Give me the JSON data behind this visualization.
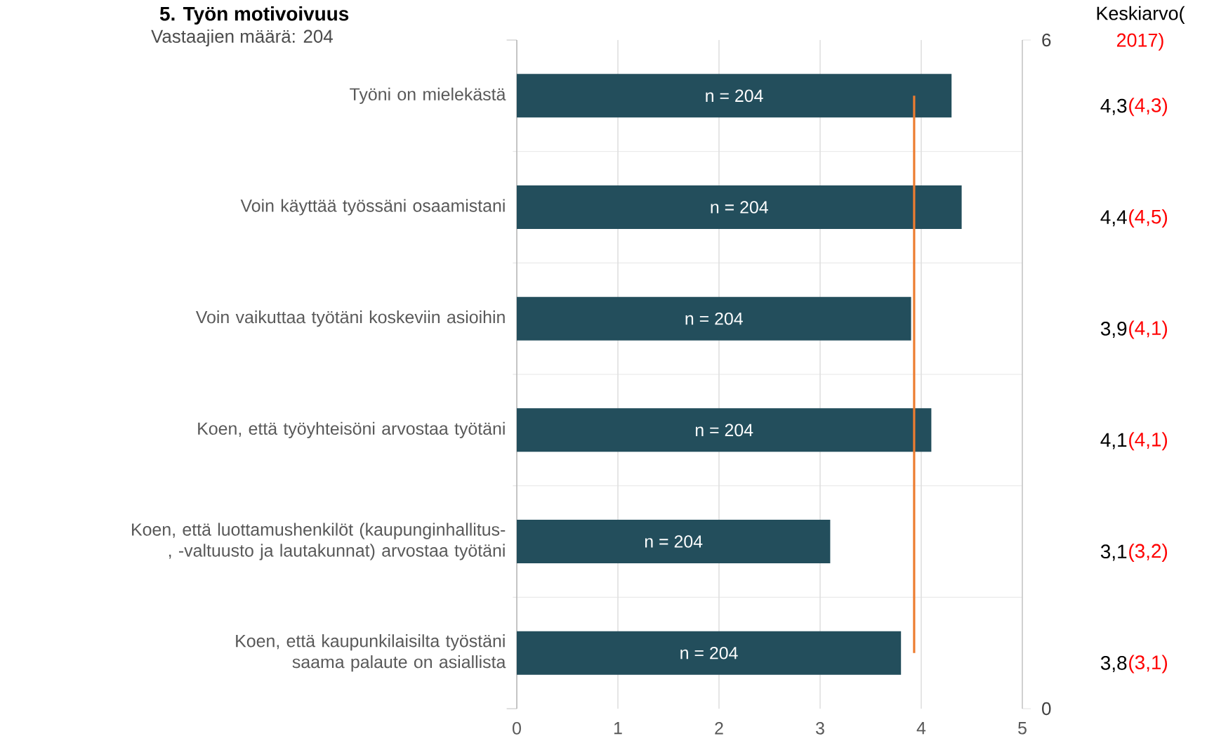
{
  "chart_data": {
    "type": "bar",
    "orientation": "horizontal",
    "title": "5. Työn motivoivuus",
    "subtitle": "Vastaajien määrä: 204",
    "categories": [
      "Työni on mielekästä",
      "Voin käyttää työssäni osaamistani",
      "Voin vaikuttaa työtäni koskeviin asioihin",
      "Koen, että työyhteisöni arvostaa työtäni",
      "Koen, että luottamushenkilöt (kaupunginhallitus-, -valtuusto ja lautakunnat) arvostaa työtäni",
      "Koen, että kaupunkilaisilta työstäni saama palaute on asiallista"
    ],
    "series": [
      {
        "color": "#234e5c",
        "values": [
          4.3,
          4.4,
          3.9,
          4.1,
          3.1,
          3.8
        ]
      }
    ],
    "ref_lines": [
      {
        "axis": "x",
        "value": 3.93,
        "color": "#ed7d31"
      }
    ],
    "xlim": [
      0,
      5
    ],
    "xticks": [
      0,
      1,
      2,
      3,
      4,
      5
    ],
    "y2lim": [
      0,
      6
    ],
    "y2ticks": [
      0,
      6
    ],
    "grid": true,
    "annotations": [
      "n = 204",
      "n = 204",
      "n = 204",
      "n = 204",
      "n = 204",
      "n = 204",
      "Keskiarvo(",
      "2017)",
      "4,3",
      "(4,3)",
      "4,4",
      "(4,5)",
      "3,9",
      "(4,1)",
      "4,1",
      "(4,1)",
      "3,1",
      "(3,2)",
      "3,8",
      "(3,1)"
    ]
  }
}
